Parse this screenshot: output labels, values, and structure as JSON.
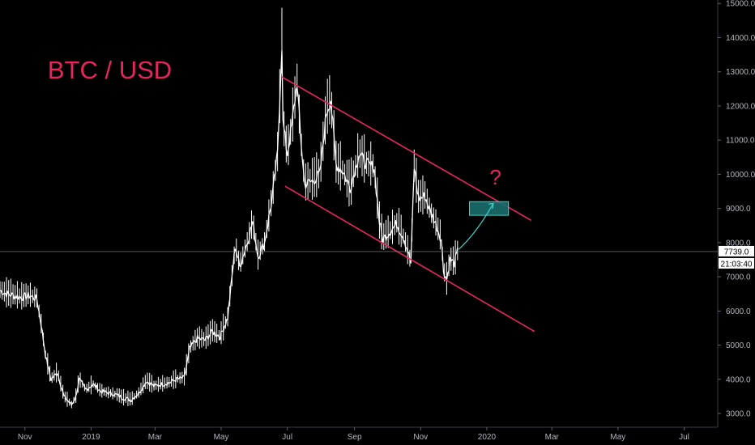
{
  "chart_data": {
    "type": "line",
    "title": "BTC / USD",
    "annotation_text": "?",
    "colors": {
      "background": "#000000",
      "price_line": "#ffffff",
      "channel": "#e8255f",
      "target_box_fill": "#1a6e6b",
      "target_box_stroke": "#3fd3c9",
      "projection_arrow": "#3fd3c9",
      "text": "#b2b5be"
    },
    "y_axis": {
      "ticks": [
        3000,
        4000,
        5000,
        6000,
        7000,
        8000,
        9000,
        10000,
        11000,
        12000,
        13000,
        14000,
        15000
      ],
      "tick_labels": [
        "3000.0",
        "4000.0",
        "5000.0",
        "6000.0",
        "7000.0",
        "8000.0",
        "9000.0",
        "10000.0",
        "11000.0",
        "12000.0",
        "13000.0",
        "14000.0",
        "15000.0"
      ],
      "range": [
        2600,
        15100
      ]
    },
    "x_axis": {
      "ticks": [
        "2018-11-01",
        "2019-01-01",
        "2019-03-01",
        "2019-05-01",
        "2019-07-01",
        "2019-09-01",
        "2019-11-01",
        "2020-01-01",
        "2020-03-01",
        "2020-05-01",
        "2020-07-01"
      ],
      "tick_labels": [
        "Nov",
        "2019",
        "Mar",
        "May",
        "Jul",
        "Sep",
        "Nov",
        "2020",
        "Mar",
        "May",
        "Jul"
      ],
      "range": [
        "2018-10-09",
        "2020-08-01"
      ]
    },
    "last_price": {
      "value": 7739.0,
      "label": "7739.0",
      "countdown": "21:03:40"
    },
    "series": [
      {
        "points": [
          [
            "2018-10-09",
            6600
          ],
          [
            "2018-10-15",
            6500
          ],
          [
            "2018-10-22",
            6450
          ],
          [
            "2018-10-29",
            6400
          ],
          [
            "2018-11-05",
            6450
          ],
          [
            "2018-11-12",
            6350
          ],
          [
            "2018-11-16",
            5600
          ],
          [
            "2018-11-20",
            4700
          ],
          [
            "2018-11-25",
            4000
          ],
          [
            "2018-12-01",
            4200
          ],
          [
            "2018-12-07",
            3500
          ],
          [
            "2018-12-14",
            3250
          ],
          [
            "2018-12-18",
            3500
          ],
          [
            "2018-12-21",
            4000
          ],
          [
            "2018-12-27",
            3700
          ],
          [
            "2019-01-03",
            3850
          ],
          [
            "2019-01-10",
            3650
          ],
          [
            "2019-01-17",
            3600
          ],
          [
            "2019-01-24",
            3550
          ],
          [
            "2019-01-31",
            3450
          ],
          [
            "2019-02-07",
            3400
          ],
          [
            "2019-02-14",
            3600
          ],
          [
            "2019-02-21",
            3950
          ],
          [
            "2019-02-28",
            3800
          ],
          [
            "2019-03-07",
            3850
          ],
          [
            "2019-03-14",
            3900
          ],
          [
            "2019-03-21",
            4000
          ],
          [
            "2019-03-28",
            4050
          ],
          [
            "2019-04-02",
            4900
          ],
          [
            "2019-04-09",
            5200
          ],
          [
            "2019-04-16",
            5150
          ],
          [
            "2019-04-23",
            5400
          ],
          [
            "2019-04-30",
            5250
          ],
          [
            "2019-05-07",
            5800
          ],
          [
            "2019-05-11",
            7000
          ],
          [
            "2019-05-14",
            7900
          ],
          [
            "2019-05-18",
            7300
          ],
          [
            "2019-05-25",
            8000
          ],
          [
            "2019-05-30",
            8600
          ],
          [
            "2019-06-04",
            7600
          ],
          [
            "2019-06-10",
            8000
          ],
          [
            "2019-06-17",
            9300
          ],
          [
            "2019-06-22",
            10600
          ],
          [
            "2019-06-26",
            13800
          ],
          [
            "2019-06-27",
            11500
          ],
          [
            "2019-07-01",
            10600
          ],
          [
            "2019-07-05",
            11400
          ],
          [
            "2019-07-10",
            12700
          ],
          [
            "2019-07-13",
            11200
          ],
          [
            "2019-07-17",
            9700
          ],
          [
            "2019-07-24",
            9800
          ],
          [
            "2019-07-31",
            10000
          ],
          [
            "2019-08-06",
            11800
          ],
          [
            "2019-08-10",
            12200
          ],
          [
            "2019-08-15",
            10300
          ],
          [
            "2019-08-21",
            10100
          ],
          [
            "2019-08-28",
            9600
          ],
          [
            "2019-09-05",
            10600
          ],
          [
            "2019-09-12",
            10300
          ],
          [
            "2019-09-19",
            10200
          ],
          [
            "2019-09-24",
            8600
          ],
          [
            "2019-09-27",
            8100
          ],
          [
            "2019-10-03",
            8300
          ],
          [
            "2019-10-10",
            8550
          ],
          [
            "2019-10-17",
            8100
          ],
          [
            "2019-10-23",
            7400
          ],
          [
            "2019-10-26",
            10200
          ],
          [
            "2019-10-30",
            9300
          ],
          [
            "2019-11-05",
            9350
          ],
          [
            "2019-11-10",
            8900
          ],
          [
            "2019-11-15",
            8550
          ],
          [
            "2019-11-20",
            8100
          ],
          [
            "2019-11-22",
            7200
          ],
          [
            "2019-11-25",
            6900
          ],
          [
            "2019-11-28",
            7500
          ],
          [
            "2019-12-02",
            7400
          ],
          [
            "2019-12-05",
            7739
          ]
        ]
      }
    ],
    "channel_upper": [
      [
        "2019-06-26",
        12850
      ],
      [
        "2020-02-11",
        8650
      ]
    ],
    "channel_lower": [
      [
        "2019-06-29",
        9650
      ],
      [
        "2020-02-14",
        5400
      ]
    ],
    "target_zone": {
      "from": "2019-12-16",
      "to": "2020-01-21",
      "low": 8800,
      "high": 9200
    },
    "projection_arrow": [
      [
        "2019-12-06",
        7800
      ],
      [
        "2019-12-23",
        8500
      ],
      [
        "2020-01-07",
        9150
      ]
    ],
    "question_mark_at": [
      "2020-01-09",
      9700
    ],
    "label_at": [
      "2018-11-22",
      12800
    ]
  }
}
